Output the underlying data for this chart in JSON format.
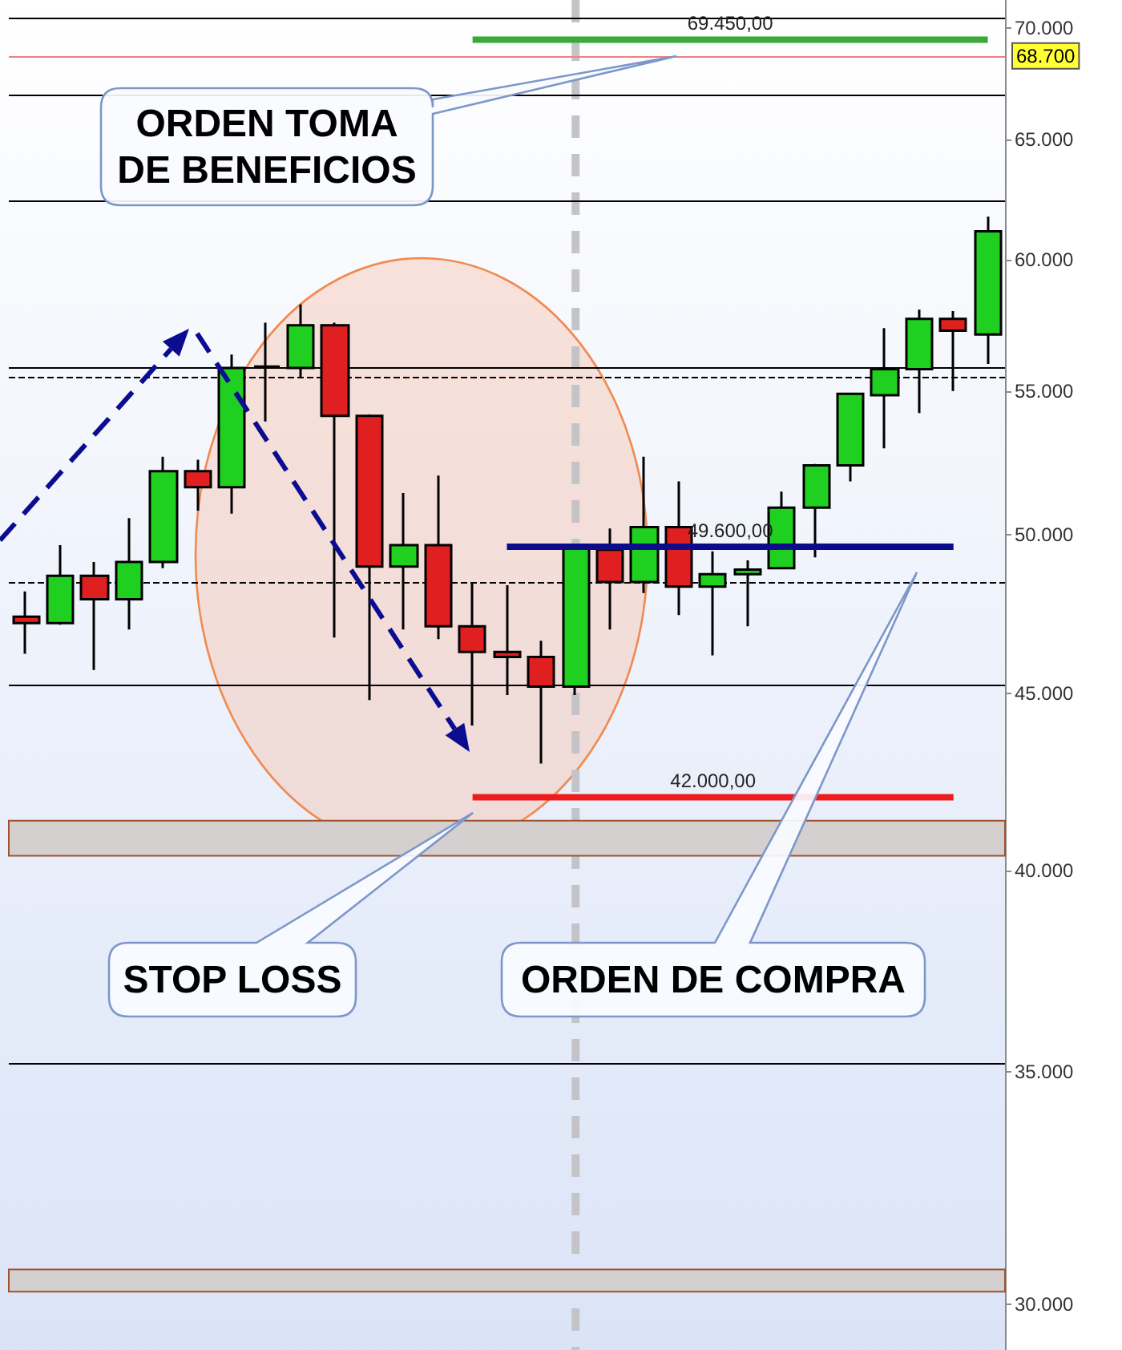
{
  "chart_data": {
    "type": "candlestick",
    "categories": [
      null,
      null,
      null,
      null,
      null,
      null,
      null,
      null,
      null,
      null,
      null,
      null,
      null,
      null,
      null,
      null,
      null,
      null,
      null,
      null,
      null,
      null,
      null,
      null,
      null,
      null,
      null,
      null,
      null
    ],
    "series": [
      {
        "ohlc": [
          [
            47350,
            48150,
            46200,
            47150
          ],
          [
            47150,
            49650,
            47100,
            48650
          ],
          [
            48650,
            49100,
            45700,
            47900
          ],
          [
            47900,
            50550,
            46950,
            49100
          ],
          [
            49100,
            52650,
            48900,
            52150
          ],
          [
            52150,
            52550,
            50800,
            51600
          ],
          [
            51600,
            56350,
            50700,
            55850
          ],
          [
            55900,
            57550,
            53900,
            55900
          ],
          [
            55850,
            58250,
            55500,
            57450
          ],
          [
            57450,
            57550,
            46700,
            54100
          ],
          [
            54100,
            54150,
            44800,
            48950
          ],
          [
            48950,
            51400,
            46950,
            49650
          ],
          [
            49650,
            52000,
            46650,
            47050
          ],
          [
            47050,
            48400,
            44050,
            46250
          ],
          [
            46250,
            48350,
            44950,
            46100
          ],
          [
            46100,
            46600,
            42950,
            45200
          ],
          [
            45200,
            49700,
            44950,
            49650
          ],
          [
            49500,
            50200,
            46950,
            48450
          ],
          [
            48450,
            52650,
            48100,
            50250
          ],
          [
            50250,
            51800,
            47400,
            48300
          ],
          [
            48300,
            49450,
            46150,
            48700
          ],
          [
            48700,
            49150,
            47050,
            48850
          ],
          [
            48900,
            51450,
            48900,
            50900
          ],
          [
            50900,
            52400,
            49250,
            52350
          ],
          [
            52350,
            54900,
            51800,
            54900
          ],
          [
            54850,
            57350,
            52950,
            55800
          ],
          [
            55800,
            58050,
            54200,
            57700
          ],
          [
            57700,
            58000,
            55000,
            57250
          ],
          [
            57100,
            61750,
            56000,
            61150
          ]
        ],
        "colors": [
          "#e02020",
          "#20d020",
          "#e02020",
          "#20d020",
          "#20d020",
          "#e02020",
          "#20d020",
          "#000000",
          "#20d020",
          "#e02020",
          "#e02020",
          "#20d020",
          "#e02020",
          "#e02020",
          "#e02020",
          "#e02020",
          "#20d020",
          "#e02020",
          "#20d020",
          "#e02020",
          "#20d020",
          "#20d020",
          "#20d020",
          "#20d020",
          "#20d020",
          "#20d020",
          "#20d020",
          "#e02020",
          "#20d020"
        ]
      },
      {
        "type": "line",
        "color": "#3aa83a",
        "values": [
          null,
          null,
          null,
          null,
          null,
          null,
          null,
          null,
          null,
          null,
          null,
          null,
          null,
          69450,
          69450,
          69450,
          69450,
          69450,
          69450,
          69450,
          69450,
          69450,
          69450,
          69450,
          69450,
          69450,
          69450,
          69450,
          69450
        ],
        "value_labels": [
          null,
          null,
          null,
          null,
          null,
          null,
          null,
          null,
          null,
          null,
          null,
          null,
          null,
          null,
          null,
          null,
          null,
          null,
          null,
          null,
          "69.450,00",
          null,
          null,
          null,
          null,
          null,
          null,
          null,
          null
        ]
      },
      {
        "type": "line",
        "color": "#0b0b8c",
        "values": [
          null,
          null,
          null,
          null,
          null,
          null,
          null,
          null,
          null,
          null,
          null,
          null,
          null,
          null,
          49600,
          49600,
          49600,
          49600,
          49600,
          49600,
          49600,
          49600,
          49600,
          49600,
          49600,
          49600,
          49600,
          49600,
          null
        ],
        "value_labels": [
          null,
          null,
          null,
          null,
          null,
          null,
          null,
          null,
          null,
          null,
          null,
          null,
          null,
          null,
          null,
          null,
          null,
          null,
          null,
          null,
          "49.600,00",
          null,
          null,
          null,
          null,
          null,
          null,
          null,
          null
        ]
      },
      {
        "type": "line",
        "color": "#ee1c1c",
        "values": [
          null,
          null,
          null,
          null,
          null,
          null,
          null,
          null,
          null,
          null,
          null,
          null,
          null,
          42000,
          42000,
          42000,
          42000,
          42000,
          42000,
          42000,
          42000,
          42000,
          42000,
          42000,
          42000,
          42000,
          42000,
          42000,
          null
        ],
        "value_labels": [
          null,
          null,
          null,
          null,
          null,
          null,
          null,
          null,
          null,
          null,
          null,
          null,
          null,
          null,
          null,
          null,
          null,
          null,
          null,
          null,
          "42.000,00",
          null,
          null,
          null,
          null,
          null,
          null,
          null,
          null
        ]
      }
    ],
    "ylim": [
      29100,
      71300
    ],
    "yticks": [
      {
        "value": 30000,
        "label": "30.000"
      },
      {
        "value": 35000,
        "label": "35.000"
      },
      {
        "value": 40000,
        "label": "40.000"
      },
      {
        "value": 45000,
        "label": "45.000"
      },
      {
        "value": 50000,
        "label": "50.000"
      },
      {
        "value": 55000,
        "label": "55.000"
      },
      {
        "value": 60000,
        "label": "60.000"
      },
      {
        "value": 65000,
        "label": "65.000"
      },
      {
        "value": 70000,
        "label": "70.000"
      }
    ],
    "log": "y",
    "tick_labels": "y",
    "marker": "none",
    "ref_lines": [
      {
        "axis": "y",
        "value": 70450,
        "color": "#000000"
      },
      {
        "axis": "y",
        "value": 68700,
        "label": "68.700",
        "color": "#f08080"
      },
      {
        "axis": "y",
        "value": 66950,
        "color": "#000000"
      },
      {
        "axis": "y",
        "value": 62400,
        "color": "#000000"
      },
      {
        "axis": "y",
        "value": 55850,
        "color": "#000000"
      },
      {
        "axis": "y",
        "value": 55500,
        "color": "#000000",
        "line_style": "dashed"
      },
      {
        "axis": "y",
        "value": 48450,
        "color": "#000000",
        "line_style": "dashed"
      },
      {
        "axis": "y",
        "value": 45250,
        "color": "#000000"
      },
      {
        "axis": "y",
        "value": 35200,
        "color": "#000000"
      }
    ],
    "bands": [
      {
        "axis": "y",
        "from": 40400,
        "to": 41350,
        "color": "#d5d0d0"
      },
      {
        "axis": "y",
        "from": 30250,
        "to": 30700,
        "color": "#d5d0d0"
      }
    ],
    "annotations": [
      "ORDEN TOMA DE BENEFICIOS",
      "STOP LOSS",
      "ORDEN DE COMPRA"
    ]
  }
}
